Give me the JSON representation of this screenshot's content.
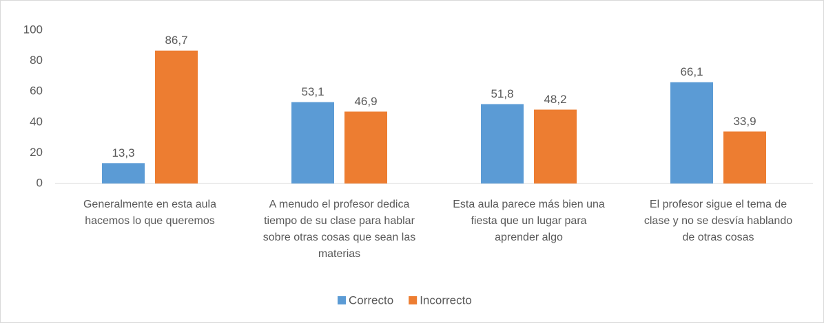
{
  "chart_data": {
    "type": "bar",
    "categories": [
      "Generalmente en esta aula hacemos lo que queremos",
      "A menudo el profesor dedica tiempo de su clase para hablar sobre otras cosas que sean las materias",
      "Esta aula parece más bien una fiesta que un lugar para aprender algo",
      "El profesor sigue el tema de clase y no se desvía hablando de otras cosas"
    ],
    "series": [
      {
        "name": "Correcto",
        "color": "#5b9bd5",
        "values": [
          13.3,
          53.1,
          51.8,
          66.1
        ],
        "value_labels": [
          "13,3",
          "53,1",
          "51,8",
          "66,1"
        ]
      },
      {
        "name": "Incorrecto",
        "color": "#ed7d31",
        "values": [
          86.7,
          46.9,
          48.2,
          33.9
        ],
        "value_labels": [
          "86,7",
          "46,9",
          "48,2",
          "33,9"
        ]
      }
    ],
    "ylim": [
      0,
      100
    ],
    "yticks": [
      0,
      20,
      40,
      60,
      80,
      100
    ],
    "grid": false,
    "legend": "bottom"
  }
}
